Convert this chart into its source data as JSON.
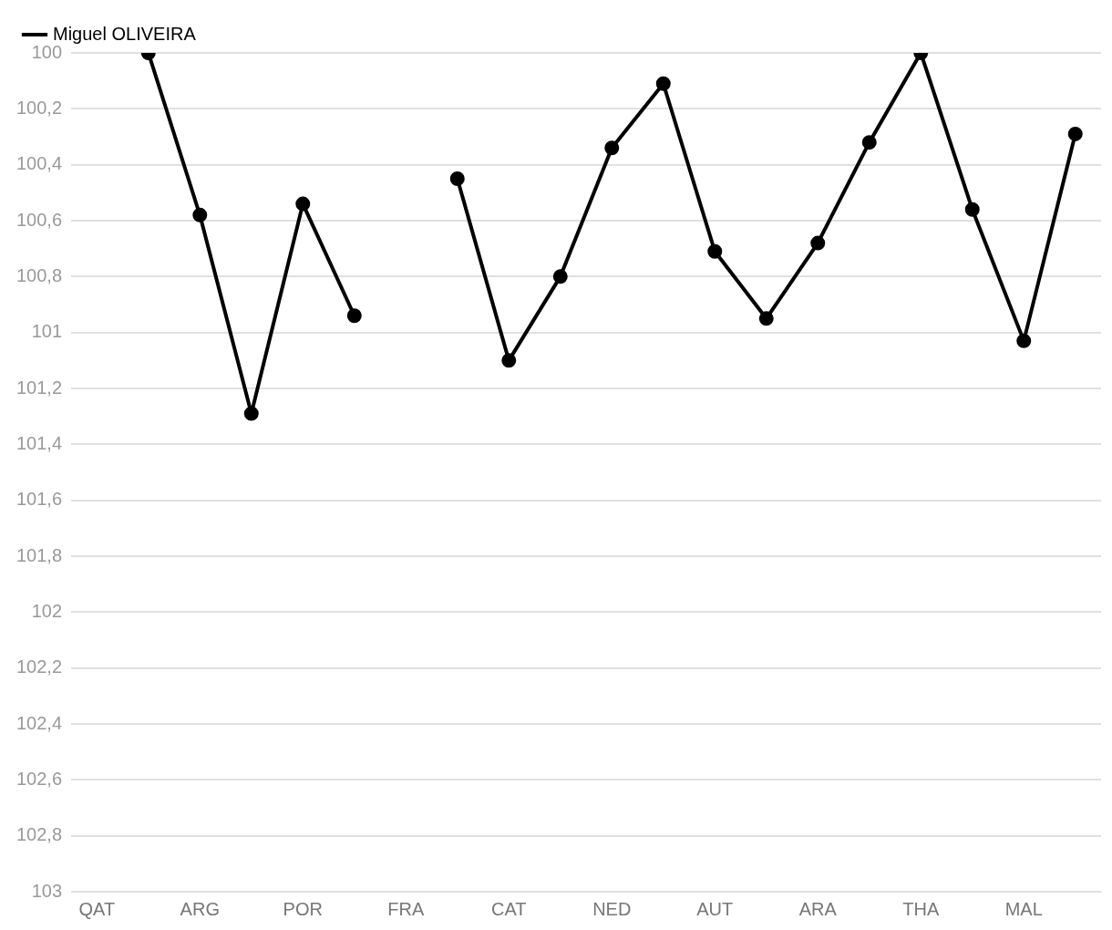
{
  "chart_data": {
    "type": "line",
    "categories": [
      "QAT",
      null,
      "ARG",
      null,
      "POR",
      null,
      "FRA",
      null,
      "CAT",
      null,
      "NED",
      null,
      "AUT",
      null,
      "ARA",
      null,
      "THA",
      null,
      "MAL",
      null
    ],
    "series": [
      {
        "name": "Miguel OLIVEIRA",
        "color": "#000000",
        "values": [
          null,
          100,
          100.58,
          101.29,
          100.54,
          100.94,
          null,
          100.45,
          101.1,
          100.8,
          100.34,
          100.11,
          100.71,
          100.95,
          100.68,
          100.32,
          100,
          100.56,
          101.03,
          100.29
        ]
      }
    ],
    "ylim": [
      103,
      100
    ],
    "yticks": [
      100,
      {
        "value": 100.2,
        "label": "100,2"
      },
      {
        "value": 100.4,
        "label": "100,4"
      },
      {
        "value": 100.6,
        "label": "100,6"
      },
      {
        "value": 100.8,
        "label": "100,8"
      },
      101,
      {
        "value": 101.2,
        "label": "101,2"
      },
      {
        "value": 101.4,
        "label": "101,4"
      },
      {
        "value": 101.6,
        "label": "101,6"
      },
      {
        "value": 101.8,
        "label": "101,8"
      },
      102,
      {
        "value": 102.2,
        "label": "102,2"
      },
      {
        "value": 102.4,
        "label": "102,4"
      },
      {
        "value": 102.6,
        "label": "102,6"
      },
      {
        "value": 102.8,
        "label": "102,8"
      },
      103
    ],
    "grid": "y",
    "legend": "top left",
    "marker": "circle",
    "line_style": "solid"
  }
}
